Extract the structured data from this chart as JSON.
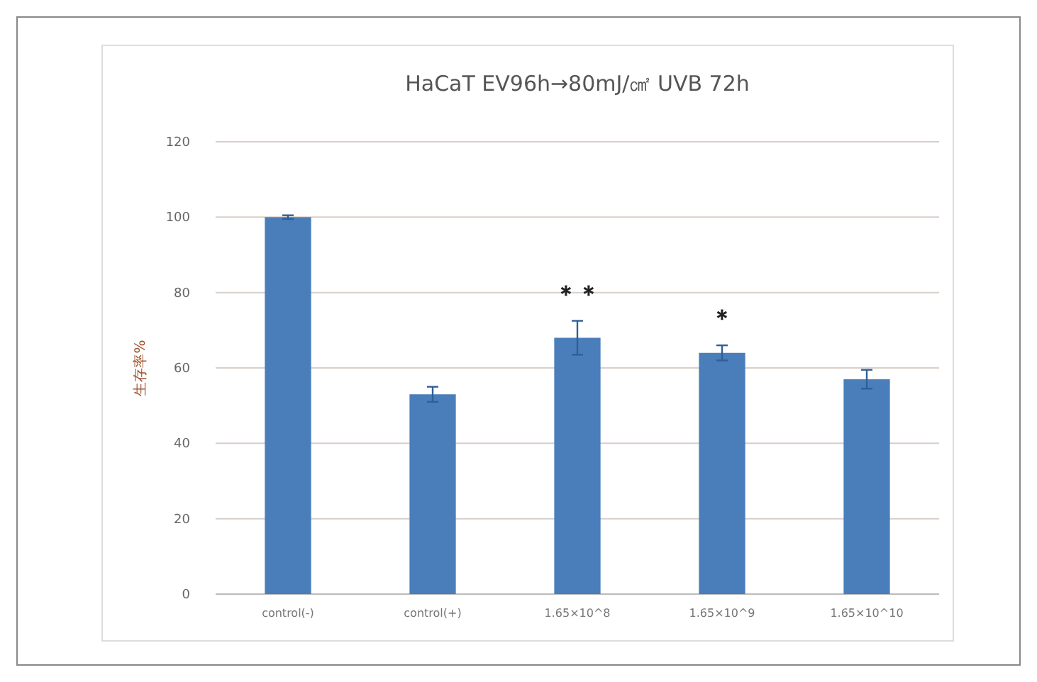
{
  "chart_data": {
    "type": "bar",
    "title": "HaCaT EV96h→80mJ/㎠ UVB 72h",
    "ylabel": "生存率%",
    "categories": [
      "control(-)",
      "control(+)",
      "1.65×10^8",
      "1.65×10^9",
      "1.65×10^10"
    ],
    "values": [
      100,
      53,
      68,
      64,
      57
    ],
    "errors": [
      0.5,
      2,
      4.5,
      2,
      2.5
    ],
    "color": "#4a7ebb",
    "ylim": [
      0,
      120
    ],
    "yticks": [
      0,
      20,
      40,
      60,
      80,
      100,
      120
    ],
    "grid": "y",
    "annotations": [
      {
        "text": "＊＊",
        "x": "1.65×10^8",
        "y": 68
      },
      {
        "text": "＊",
        "x": "1.65×10^9",
        "y": 64
      }
    ]
  }
}
